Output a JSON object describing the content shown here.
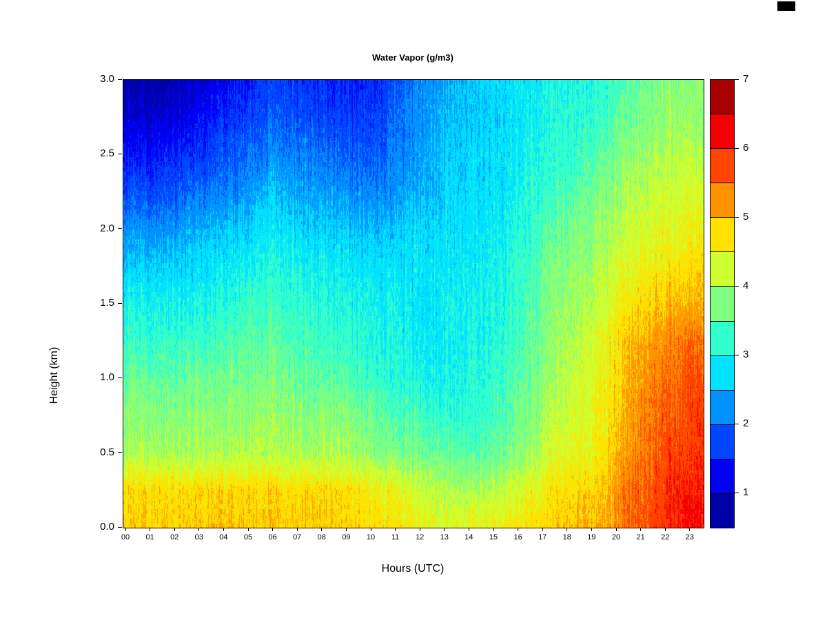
{
  "chart_data": {
    "type": "heatmap",
    "title": "Water Vapor (g/m3)",
    "xlabel": "Hours (UTC)",
    "ylabel": "Height (km)",
    "x_ticks": [
      "00",
      "01",
      "02",
      "03",
      "04",
      "05",
      "06",
      "07",
      "08",
      "09",
      "10",
      "11",
      "12",
      "13",
      "14",
      "15",
      "16",
      "17",
      "18",
      "19",
      "20",
      "21",
      "22",
      "23"
    ],
    "y_ticks": [
      "0.0",
      "0.5",
      "1.0",
      "1.5",
      "2.0",
      "2.5",
      "3.0"
    ],
    "x_range": [
      0,
      24
    ],
    "y_range": [
      0.0,
      3.0
    ],
    "grid": false,
    "legend": "none",
    "colorbar": {
      "position": "right",
      "min": 0.5,
      "max": 7.0,
      "step": 0.5,
      "ticks": [
        "1",
        "2",
        "3",
        "4",
        "5",
        "6",
        "7"
      ],
      "colors": [
        "#0000A7",
        "#0000F5",
        "#0045FF",
        "#0093FF",
        "#00E2FF",
        "#31FFCE",
        "#80FF80",
        "#CEFF31",
        "#FFE200",
        "#FF9300",
        "#FF4500",
        "#F50000",
        "#A70000"
      ]
    },
    "hours": [
      0,
      1,
      2,
      3,
      4,
      5,
      6,
      7,
      8,
      9,
      10,
      11,
      12,
      13,
      14,
      15,
      16,
      17,
      18,
      19,
      20,
      21,
      22,
      23
    ],
    "heights": [
      0.0,
      0.25,
      0.5,
      0.75,
      1.0,
      1.25,
      1.5,
      1.75,
      2.0,
      2.25,
      2.5,
      2.75,
      3.0
    ],
    "values": [
      [
        4.9,
        4.9,
        4.9,
        4.9,
        4.9,
        4.9,
        4.9,
        4.9,
        4.9,
        4.8,
        4.8,
        4.6,
        4.5,
        4.4,
        4.5,
        4.6,
        4.7,
        4.9,
        5.0,
        5.0,
        5.5,
        5.8,
        6.1,
        6.2
      ],
      [
        4.8,
        4.8,
        4.8,
        4.8,
        4.8,
        4.8,
        4.8,
        4.8,
        4.8,
        4.7,
        4.6,
        4.4,
        4.2,
        4.0,
        4.0,
        4.2,
        4.4,
        4.7,
        4.8,
        4.9,
        5.4,
        5.7,
        6.0,
        6.1
      ],
      [
        4.0,
        4.0,
        4.0,
        4.0,
        4.0,
        4.1,
        4.1,
        4.0,
        4.0,
        3.9,
        3.8,
        3.7,
        3.6,
        3.5,
        3.5,
        3.6,
        3.9,
        4.3,
        4.5,
        4.7,
        5.2,
        5.6,
        5.8,
        5.9
      ],
      [
        3.8,
        3.8,
        3.8,
        3.8,
        3.8,
        3.9,
        3.9,
        3.8,
        3.8,
        3.7,
        3.6,
        3.4,
        3.3,
        3.2,
        3.2,
        3.4,
        3.7,
        4.1,
        4.3,
        4.6,
        5.1,
        5.5,
        5.7,
        5.8
      ],
      [
        3.6,
        3.6,
        3.6,
        3.6,
        3.6,
        3.7,
        3.7,
        3.6,
        3.5,
        3.4,
        3.3,
        3.1,
        3.0,
        3.0,
        3.1,
        3.3,
        3.6,
        4.0,
        4.2,
        4.5,
        5.0,
        5.4,
        5.6,
        5.7
      ],
      [
        3.3,
        3.3,
        3.3,
        3.3,
        3.4,
        3.5,
        3.5,
        3.4,
        3.3,
        3.2,
        3.1,
        3.0,
        2.9,
        2.9,
        3.0,
        3.2,
        3.5,
        3.9,
        4.1,
        4.4,
        4.9,
        5.2,
        5.4,
        5.5
      ],
      [
        3.0,
        3.0,
        3.0,
        3.0,
        3.1,
        3.3,
        3.3,
        3.2,
        3.1,
        3.0,
        3.0,
        2.9,
        2.8,
        2.9,
        3.0,
        3.1,
        3.4,
        3.8,
        4.0,
        4.2,
        4.6,
        4.9,
        5.0,
        5.1
      ],
      [
        2.6,
        2.6,
        2.7,
        2.7,
        2.8,
        3.0,
        3.1,
        3.0,
        2.9,
        2.8,
        2.8,
        2.8,
        2.8,
        2.8,
        2.9,
        3.0,
        3.3,
        3.7,
        3.9,
        4.1,
        4.4,
        4.6,
        4.7,
        4.8
      ],
      [
        2.2,
        2.2,
        2.3,
        2.4,
        2.5,
        2.7,
        2.8,
        2.7,
        2.6,
        2.5,
        2.5,
        2.6,
        2.7,
        2.8,
        2.8,
        2.9,
        3.2,
        3.5,
        3.7,
        3.9,
        4.2,
        4.4,
        4.5,
        4.5
      ],
      [
        1.8,
        1.8,
        1.9,
        2.0,
        2.1,
        2.3,
        2.5,
        2.4,
        2.3,
        2.2,
        2.2,
        2.3,
        2.5,
        2.7,
        2.7,
        2.8,
        3.1,
        3.3,
        3.5,
        3.7,
        4.0,
        4.2,
        4.3,
        4.3
      ],
      [
        1.4,
        1.4,
        1.5,
        1.6,
        1.8,
        2.0,
        2.2,
        2.1,
        2.0,
        1.9,
        1.9,
        2.1,
        2.4,
        2.6,
        2.7,
        2.8,
        3.0,
        3.2,
        3.3,
        3.5,
        3.8,
        4.0,
        4.1,
        4.1
      ],
      [
        1.0,
        1.0,
        1.1,
        1.3,
        1.5,
        1.7,
        1.9,
        1.8,
        1.7,
        1.6,
        1.7,
        2.0,
        2.3,
        2.5,
        2.6,
        2.7,
        2.9,
        3.1,
        3.2,
        3.3,
        3.6,
        3.8,
        3.9,
        3.9
      ],
      [
        0.7,
        0.7,
        0.8,
        1.0,
        1.2,
        1.5,
        1.7,
        1.6,
        1.5,
        1.4,
        1.5,
        1.9,
        2.2,
        2.4,
        2.6,
        2.7,
        2.8,
        3.0,
        3.1,
        3.2,
        3.5,
        3.7,
        3.8,
        3.8
      ]
    ]
  }
}
